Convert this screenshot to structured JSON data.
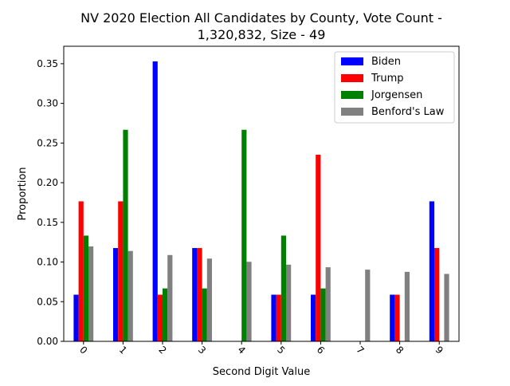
{
  "chart_data": {
    "type": "bar",
    "title_line1": "NV 2020 Election All Candidates by County, Vote Count -",
    "title_line2": "1,320,832, Size - 49",
    "xlabel": "Second Digit Value",
    "ylabel": "Proportion",
    "ylim": [
      0,
      0.372
    ],
    "yticks": [
      "0.00",
      "0.05",
      "0.10",
      "0.15",
      "0.20",
      "0.25",
      "0.30",
      "0.35"
    ],
    "categories": [
      "0",
      "1",
      "2",
      "3",
      "4",
      "5",
      "6",
      "7",
      "8",
      "9"
    ],
    "grid": false,
    "legend_position": "top-right",
    "series": [
      {
        "name": "Biden",
        "color": "#0000ff",
        "values": [
          0.0588,
          0.1176,
          0.3529,
          0.1176,
          0.0,
          0.0588,
          0.0588,
          0.0,
          0.0588,
          0.1765
        ]
      },
      {
        "name": "Trump",
        "color": "#ff0000",
        "values": [
          0.1765,
          0.1765,
          0.0588,
          0.1176,
          0.0,
          0.0588,
          0.2353,
          0.0,
          0.0588,
          0.1176
        ]
      },
      {
        "name": "Jorgensen",
        "color": "#008000",
        "values": [
          0.1333,
          0.2667,
          0.0667,
          0.0667,
          0.2667,
          0.1333,
          0.0667,
          0.0,
          0.0,
          0.0
        ]
      },
      {
        "name": "Benford's Law",
        "color": "#808080",
        "values": [
          0.1197,
          0.1139,
          0.1088,
          0.1043,
          0.1003,
          0.0967,
          0.0934,
          0.0904,
          0.0876,
          0.085
        ]
      }
    ]
  }
}
